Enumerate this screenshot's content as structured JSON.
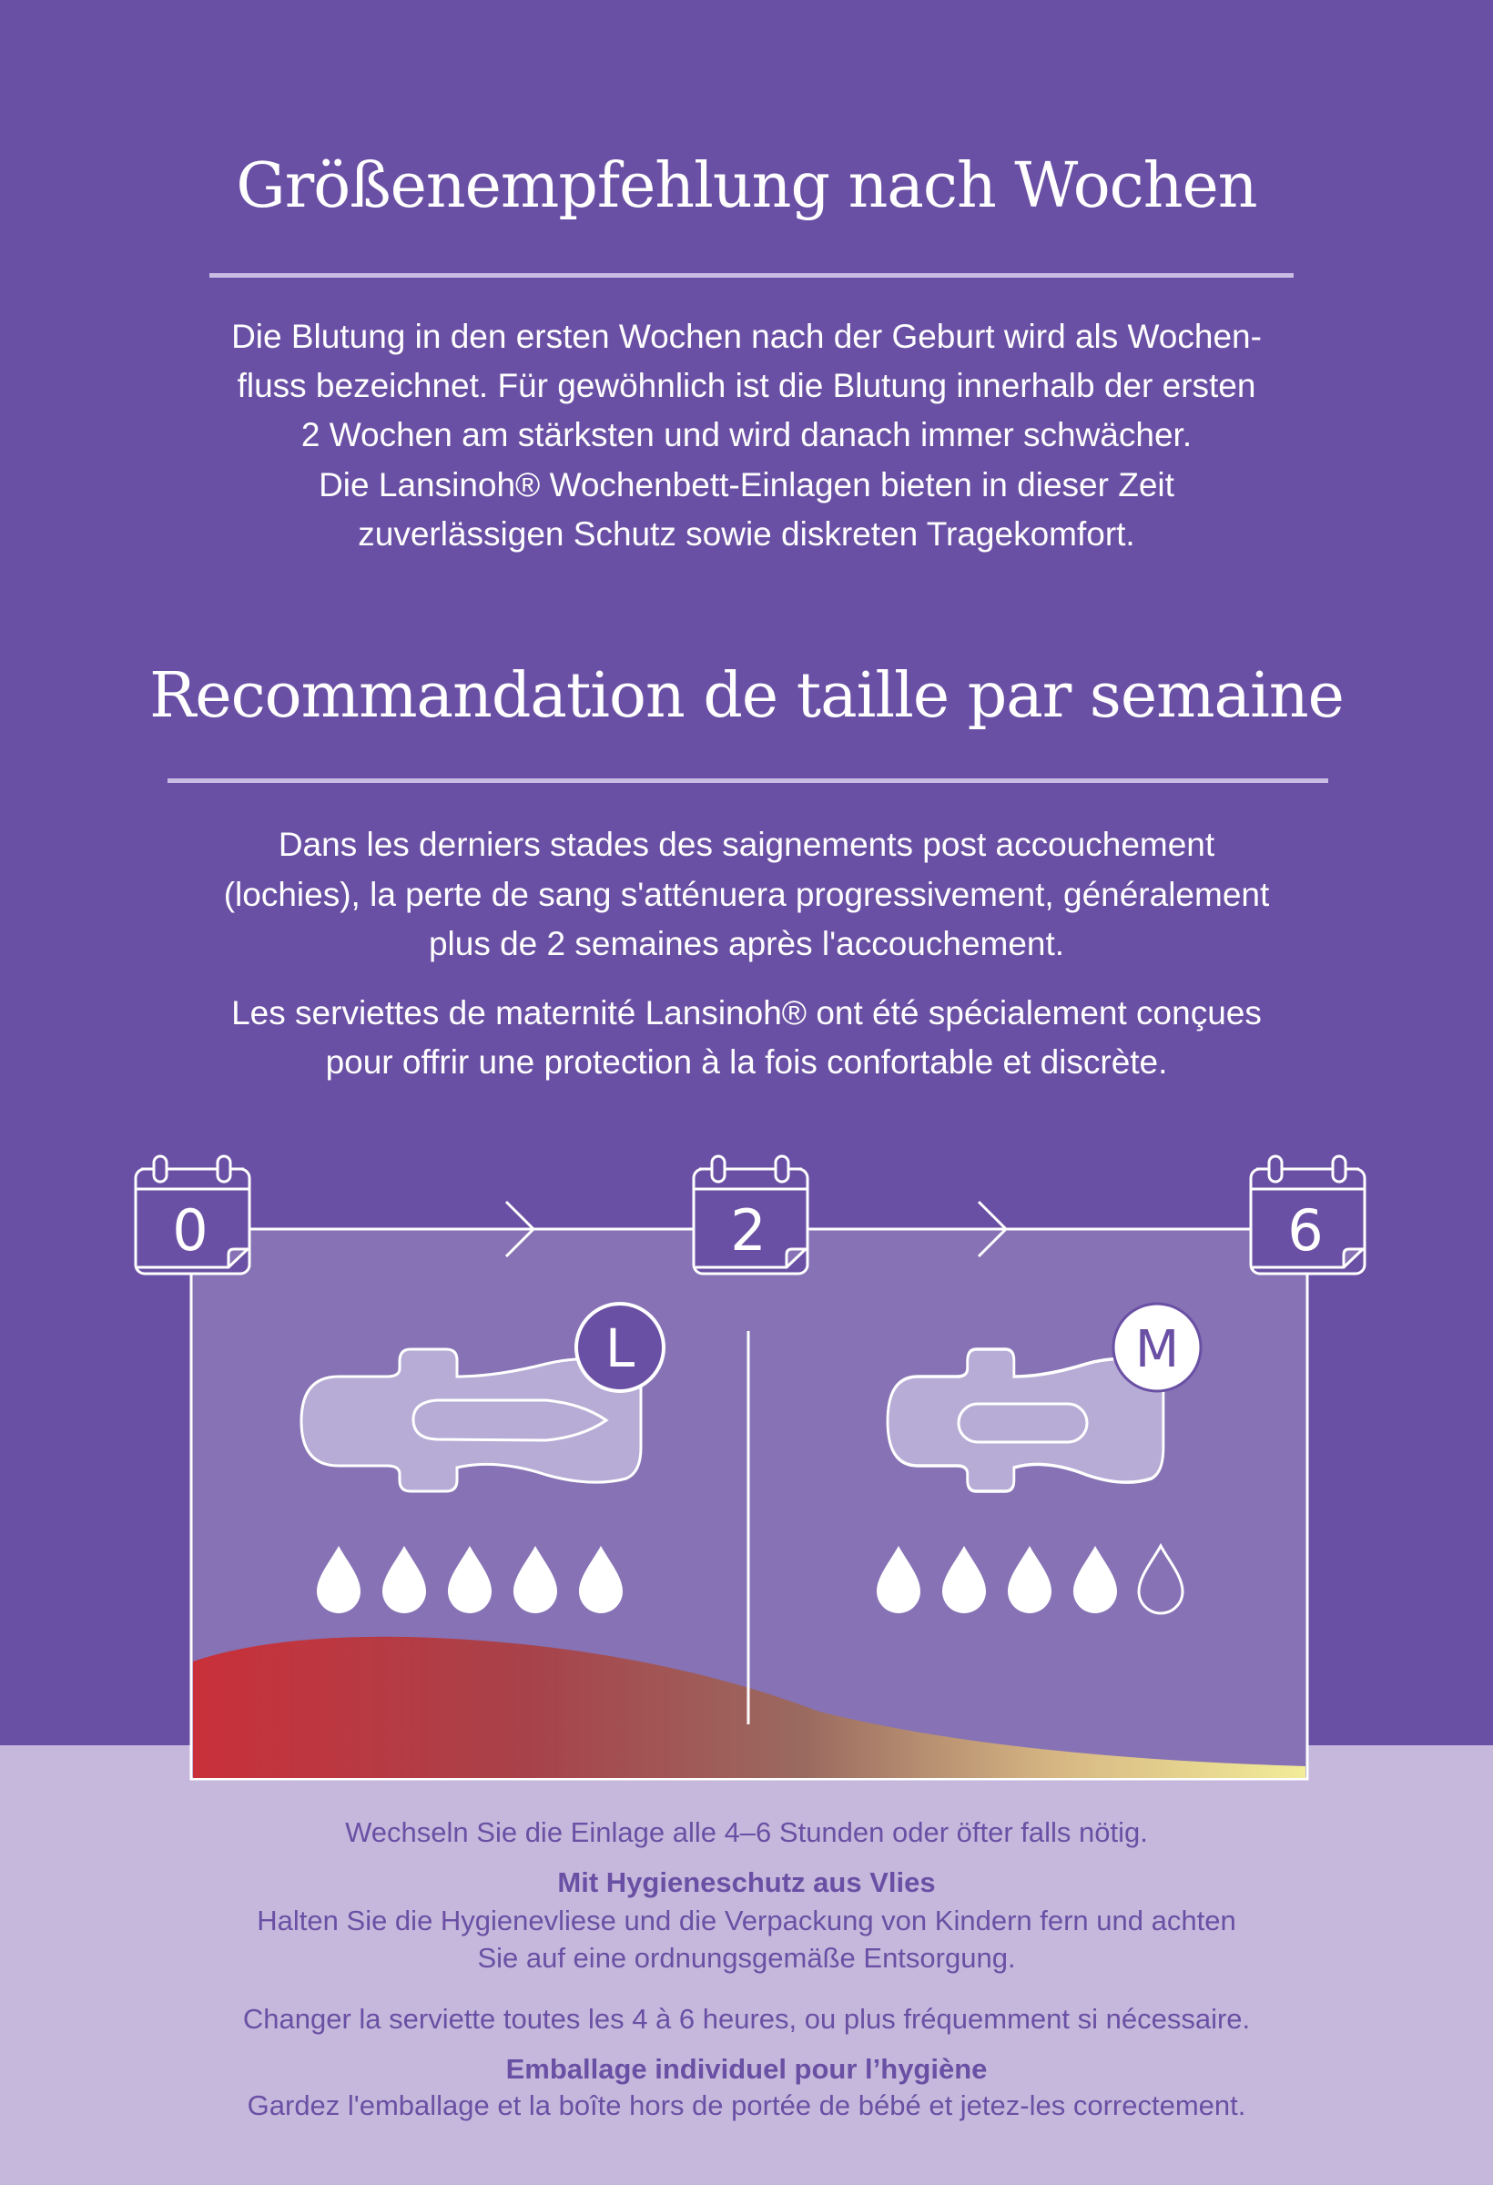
{
  "german": {
    "title": "Größenempfehlung nach Wochen",
    "paragraph_lines": [
      "Die Blutung in den ersten Wochen nach der Geburt wird als Wochen-",
      "fluss bezeichnet. Für gewöhnlich ist die Blutung innerhalb der ersten",
      "2 Wochen am stärksten und wird danach immer schwächer.",
      "Die Lansinoh® Wochenbett-Einlagen bieten in dieser Zeit",
      "zuverlässigen Schutz sowie diskreten Tragekomfort."
    ]
  },
  "french": {
    "title": "Recommandation de taille par semaine",
    "paragraph1_lines": [
      "Dans les derniers stades des saignements post accouchement",
      "(lochies), la perte de sang s'atténuera progressivement, généralement",
      "plus de 2 semaines après l'accouchement."
    ],
    "paragraph2_lines": [
      "Les serviettes de maternité Lansinoh® ont été spécialement conçues",
      "pour offrir une protection à la fois confortable et discrète."
    ]
  },
  "timeline": {
    "weeks": [
      "0",
      "2",
      "6"
    ],
    "stages": [
      {
        "size": "L",
        "drops_filled": 5,
        "drops_total": 5
      },
      {
        "size": "M",
        "drops_filled": 4,
        "drops_total": 5
      }
    ],
    "flow_gradient_colors": [
      "#c9303a",
      "#a8424a",
      "#9a6a60",
      "#d7b884",
      "#f2ec98"
    ]
  },
  "footer": {
    "de_change": "Wechseln Sie die Einlage alle 4–6 Stunden oder öfter falls nötig.",
    "de_heading": "Mit Hygieneschutz aus Vlies",
    "de_text_lines": [
      "Halten Sie die Hygienevliese und die Verpackung von Kindern fern und achten",
      "Sie auf eine ordnungsgemäße Entsorgung."
    ],
    "fr_change": "Changer la serviette toutes les 4 à 6 heures, ou plus fréquemment si nécessaire.",
    "fr_heading": "Emballage individuel pour l’hygiène",
    "fr_text": "Gardez l'emballage et la boîte hors de portée de bébé et jetez-les correctement."
  },
  "colors": {
    "background": "#6a50a4",
    "panel": "#8672b4",
    "footer_bg": "#c6b8dc",
    "pad": "#b7acd6"
  }
}
